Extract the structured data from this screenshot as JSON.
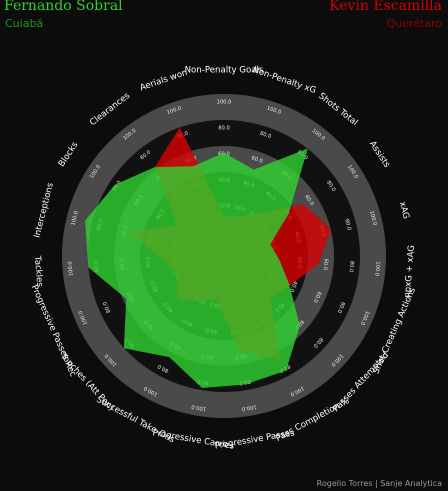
{
  "header": {
    "player1": {
      "name": "Fernando Sobral",
      "club": "Cuiabá",
      "color": "#2fd32f",
      "club_color": "#1a9a1a"
    },
    "player2": {
      "name": "Kevin Escamilla",
      "club": "Querétaro",
      "color": "#d80000",
      "club_color": "#8f0000"
    }
  },
  "credit": "Rogelio Torres | Sanje Analytica",
  "chart_data": {
    "type": "radar",
    "params": [
      "Non-Penalty Goals",
      "Non-Penalty xG",
      "Shots Total",
      "Assists",
      "xAG",
      "npxG + xAG",
      "Shot-Creating Actions",
      "Passes Attempted",
      "Pass Completion %",
      "Progressive Passes",
      "Progressive Carries",
      "Successful Take-Ons",
      "Touches (Att Pen)",
      "Progressive Passes Rec",
      "Tackles",
      "Interceptions",
      "Blocks",
      "Clearances",
      "Aerials won"
    ],
    "ring_labels": [
      "20.0",
      "40.0",
      "60.0",
      "80.0",
      "100.0"
    ],
    "range": [
      0,
      100
    ],
    "series": [
      {
        "name": "Fernando Sobral",
        "color": "#2fd32f",
        "values": [
          62,
          52,
          90,
          40,
          15,
          22,
          35,
          62,
          85,
          85,
          88,
          72,
          90,
          65,
          90,
          96,
          85,
          70,
          55
        ]
      },
      {
        "name": "Kevin Escamilla",
        "color": "#d80000",
        "values": [
          8,
          10,
          20,
          55,
          68,
          55,
          36,
          28,
          75,
          55,
          12,
          18,
          28,
          18,
          25,
          58,
          22,
          70,
          90
        ]
      }
    ]
  }
}
